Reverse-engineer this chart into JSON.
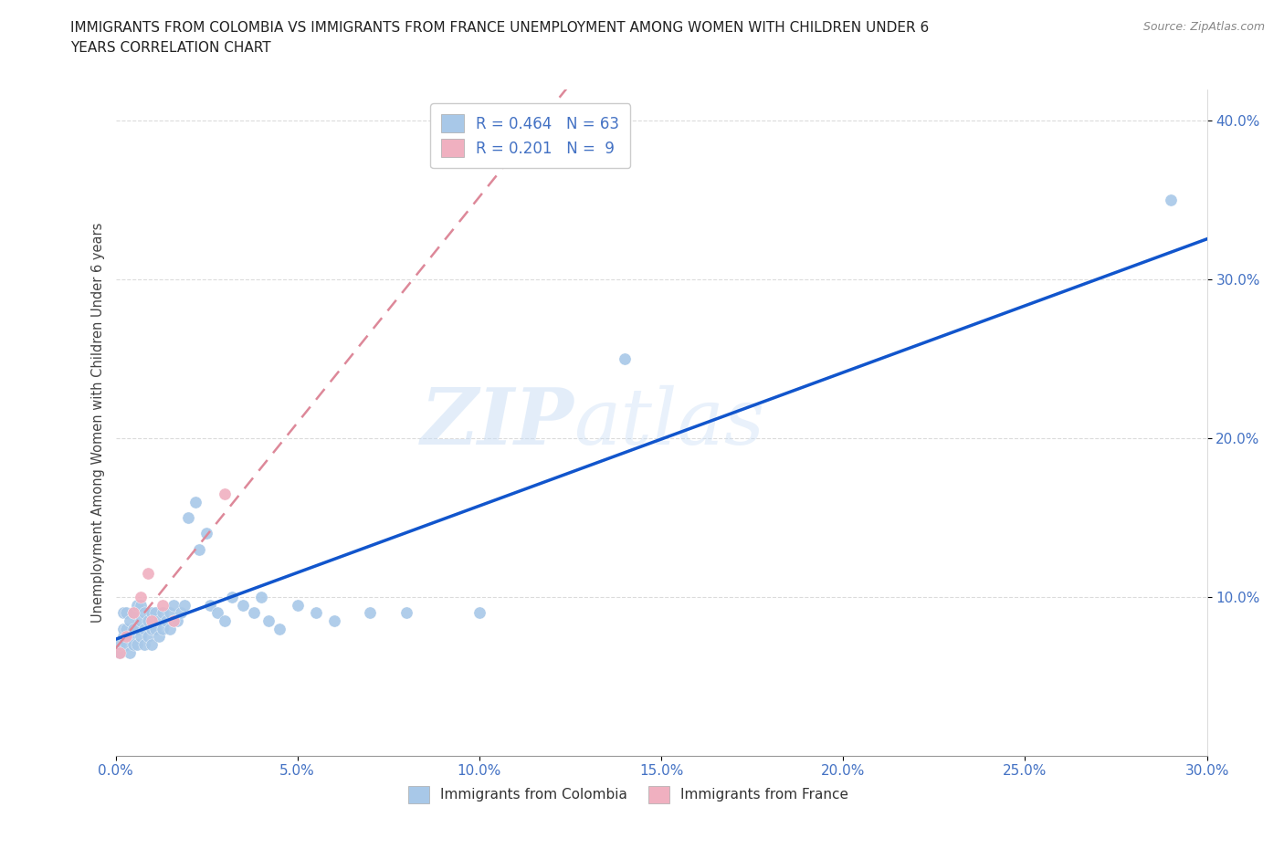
{
  "title_line1": "IMMIGRANTS FROM COLOMBIA VS IMMIGRANTS FROM FRANCE UNEMPLOYMENT AMONG WOMEN WITH CHILDREN UNDER 6",
  "title_line2": "YEARS CORRELATION CHART",
  "source": "Source: ZipAtlas.com",
  "ylabel": "Unemployment Among Women with Children Under 6 years",
  "xlim": [
    0.0,
    0.3
  ],
  "ylim": [
    0.0,
    0.42
  ],
  "xticks": [
    0.0,
    0.05,
    0.1,
    0.15,
    0.2,
    0.25,
    0.3
  ],
  "yticks": [
    0.1,
    0.2,
    0.3,
    0.4
  ],
  "colombia_color": "#a8c8e8",
  "france_color": "#f0b0c0",
  "trendline_colombia_color": "#1155cc",
  "trendline_france_color": "#dd8899",
  "R_colombia": 0.464,
  "N_colombia": 63,
  "R_france": 0.201,
  "N_france": 9,
  "colombia_x": [
    0.001,
    0.001,
    0.002,
    0.002,
    0.002,
    0.003,
    0.003,
    0.003,
    0.004,
    0.004,
    0.004,
    0.005,
    0.005,
    0.005,
    0.006,
    0.006,
    0.006,
    0.007,
    0.007,
    0.007,
    0.008,
    0.008,
    0.008,
    0.009,
    0.009,
    0.01,
    0.01,
    0.01,
    0.011,
    0.011,
    0.012,
    0.012,
    0.013,
    0.013,
    0.014,
    0.015,
    0.015,
    0.016,
    0.016,
    0.017,
    0.018,
    0.019,
    0.02,
    0.022,
    0.023,
    0.025,
    0.026,
    0.028,
    0.03,
    0.032,
    0.035,
    0.038,
    0.04,
    0.042,
    0.045,
    0.05,
    0.055,
    0.06,
    0.07,
    0.08,
    0.1,
    0.14,
    0.29
  ],
  "colombia_y": [
    0.065,
    0.07,
    0.075,
    0.08,
    0.09,
    0.07,
    0.08,
    0.09,
    0.065,
    0.075,
    0.085,
    0.07,
    0.08,
    0.09,
    0.07,
    0.08,
    0.095,
    0.075,
    0.085,
    0.095,
    0.07,
    0.08,
    0.09,
    0.075,
    0.085,
    0.07,
    0.08,
    0.09,
    0.08,
    0.09,
    0.075,
    0.085,
    0.08,
    0.09,
    0.085,
    0.08,
    0.09,
    0.085,
    0.095,
    0.085,
    0.09,
    0.095,
    0.15,
    0.16,
    0.13,
    0.14,
    0.095,
    0.09,
    0.085,
    0.1,
    0.095,
    0.09,
    0.1,
    0.085,
    0.08,
    0.095,
    0.09,
    0.085,
    0.09,
    0.09,
    0.09,
    0.25,
    0.35
  ],
  "france_x": [
    0.001,
    0.003,
    0.005,
    0.007,
    0.009,
    0.01,
    0.013,
    0.016,
    0.03
  ],
  "france_y": [
    0.065,
    0.075,
    0.09,
    0.1,
    0.115,
    0.085,
    0.095,
    0.085,
    0.165
  ],
  "watermark_zip": "ZIP",
  "watermark_atlas": "atlas",
  "background_color": "#ffffff",
  "grid_color": "#e0e0e0"
}
